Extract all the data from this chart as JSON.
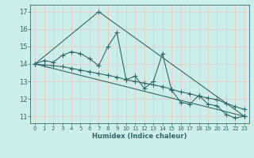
{
  "xlabel": "Humidex (Indice chaleur)",
  "background_color": "#cceee8",
  "grid_color": "#e8c8c8",
  "line_color": "#336666",
  "xlim": [
    -0.5,
    23.5
  ],
  "ylim": [
    10.6,
    17.4
  ],
  "xticks": [
    0,
    1,
    2,
    3,
    4,
    5,
    6,
    7,
    8,
    9,
    10,
    11,
    12,
    13,
    14,
    15,
    16,
    17,
    18,
    19,
    20,
    21,
    22,
    23
  ],
  "yticks": [
    11,
    12,
    13,
    14,
    15,
    16,
    17
  ],
  "series1_x": [
    0,
    1,
    2,
    3,
    4,
    5,
    6,
    7,
    8,
    9,
    10,
    11,
    12,
    13,
    14,
    15,
    16,
    17,
    18,
    19,
    20,
    21,
    22,
    23
  ],
  "series1_y": [
    14.0,
    14.2,
    14.1,
    14.5,
    14.7,
    14.6,
    14.3,
    13.9,
    15.0,
    15.8,
    13.1,
    13.3,
    12.6,
    13.0,
    14.6,
    12.5,
    11.8,
    11.7,
    12.2,
    11.7,
    11.6,
    11.1,
    10.9,
    11.0
  ],
  "series2_x": [
    0,
    1,
    2,
    3,
    4,
    5,
    6,
    7,
    8,
    9,
    10,
    11,
    12,
    13,
    14,
    15,
    16,
    17,
    18,
    19,
    20,
    21,
    22,
    23
  ],
  "series2_y": [
    14.0,
    13.95,
    13.9,
    13.85,
    13.75,
    13.65,
    13.55,
    13.45,
    13.35,
    13.25,
    13.1,
    13.0,
    12.9,
    12.8,
    12.7,
    12.55,
    12.4,
    12.3,
    12.15,
    12.05,
    11.95,
    11.75,
    11.55,
    11.4
  ],
  "series3_x": [
    0,
    7,
    23
  ],
  "series3_y": [
    14.0,
    17.0,
    11.0
  ],
  "series4_x": [
    0,
    23
  ],
  "series4_y": [
    14.0,
    11.0
  ]
}
